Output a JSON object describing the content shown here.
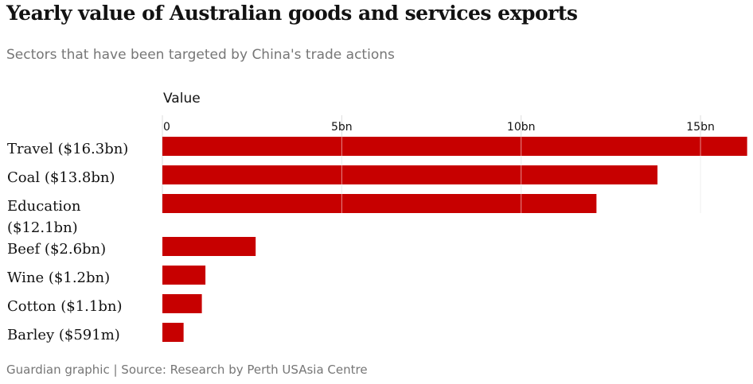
{
  "title": "Yearly value of Australian goods and services exports",
  "subtitle": "Sectors that have been targeted by China's trade actions",
  "source": "Guardian graphic | Source: Research by Perth USAsia Centre",
  "colors": {
    "bar": "#c70000",
    "grid": "#dcdcdc",
    "text": "#121212",
    "muted": "#767676"
  },
  "chart_data": {
    "type": "bar",
    "orientation": "horizontal",
    "title": "Yearly value of Australian goods and services exports",
    "subtitle": "Sectors that have been targeted by China's trade actions",
    "xlabel": "Value",
    "ylabel": "",
    "xlim": [
      0,
      16.3
    ],
    "ticks": [
      0,
      5,
      10,
      15
    ],
    "tick_labels": [
      "0",
      "5bn",
      "10bn",
      "15bn"
    ],
    "grid": true,
    "series": [
      {
        "name": "Value",
        "unit": "bn",
        "points": [
          {
            "label": [
              "Travel ($16.3bn)"
            ],
            "value": 16.3
          },
          {
            "label": [
              "Coal ($13.8bn)"
            ],
            "value": 13.8
          },
          {
            "label": [
              "Education",
              "($12.1bn)"
            ],
            "value": 12.1
          },
          {
            "label": [
              "Beef ($2.6bn)"
            ],
            "value": 2.6
          },
          {
            "label": [
              "Wine ($1.2bn)"
            ],
            "value": 1.2
          },
          {
            "label": [
              "Cotton ($1.1bn)"
            ],
            "value": 1.1
          },
          {
            "label": [
              "Barley ($591m)"
            ],
            "value": 0.591
          }
        ]
      }
    ]
  }
}
